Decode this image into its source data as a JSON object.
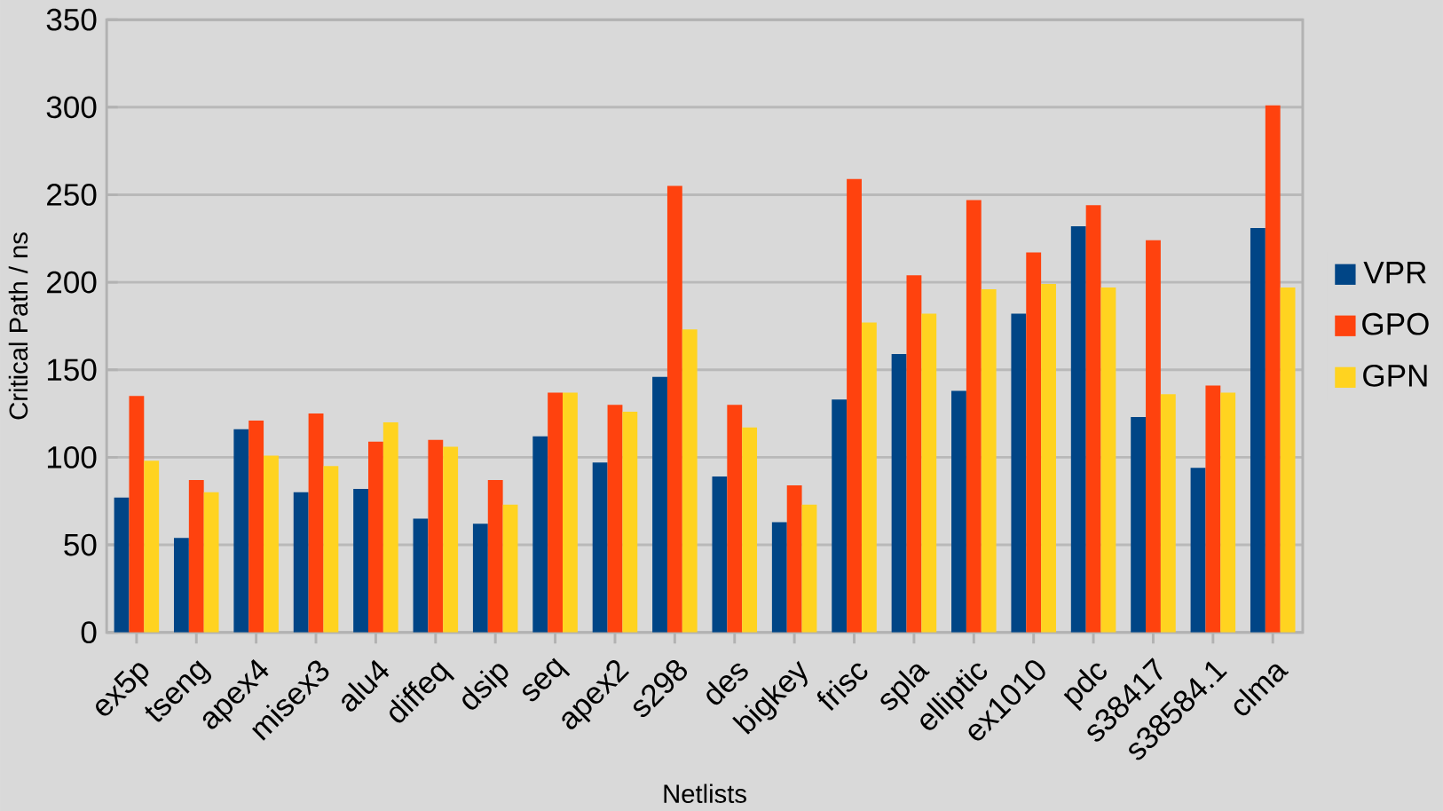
{
  "chart_data": {
    "type": "bar",
    "xlabel": "Netlists",
    "ylabel": "Critical Path / ns",
    "categories": [
      "ex5p",
      "tseng",
      "apex4",
      "misex3",
      "alu4",
      "diffeq",
      "dsip",
      "seq",
      "apex2",
      "s298",
      "des",
      "bigkey",
      "frisc",
      "spla",
      "elliptic",
      "ex1010",
      "pdc",
      "s38417",
      "s38584.1",
      "clma"
    ],
    "series": [
      {
        "name": "VPR",
        "color": "#004586",
        "values": [
          77,
          54,
          116,
          80,
          82,
          65,
          62,
          112,
          97,
          146,
          89,
          63,
          133,
          159,
          138,
          182,
          232,
          123,
          94,
          231
        ]
      },
      {
        "name": "GPO",
        "color": "#ff420e",
        "values": [
          135,
          87,
          121,
          125,
          109,
          110,
          87,
          137,
          130,
          255,
          130,
          84,
          259,
          204,
          247,
          217,
          244,
          224,
          141,
          301
        ]
      },
      {
        "name": "GPN",
        "color": "#ffd320",
        "values": [
          98,
          80,
          101,
          95,
          120,
          106,
          73,
          137,
          126,
          173,
          117,
          73,
          177,
          182,
          196,
          199,
          197,
          136,
          137,
          197
        ]
      }
    ],
    "ylim": [
      0,
      350
    ],
    "yticks": [
      0,
      50,
      100,
      150,
      200,
      250,
      300,
      350
    ],
    "grid": "y",
    "legend": "right"
  }
}
